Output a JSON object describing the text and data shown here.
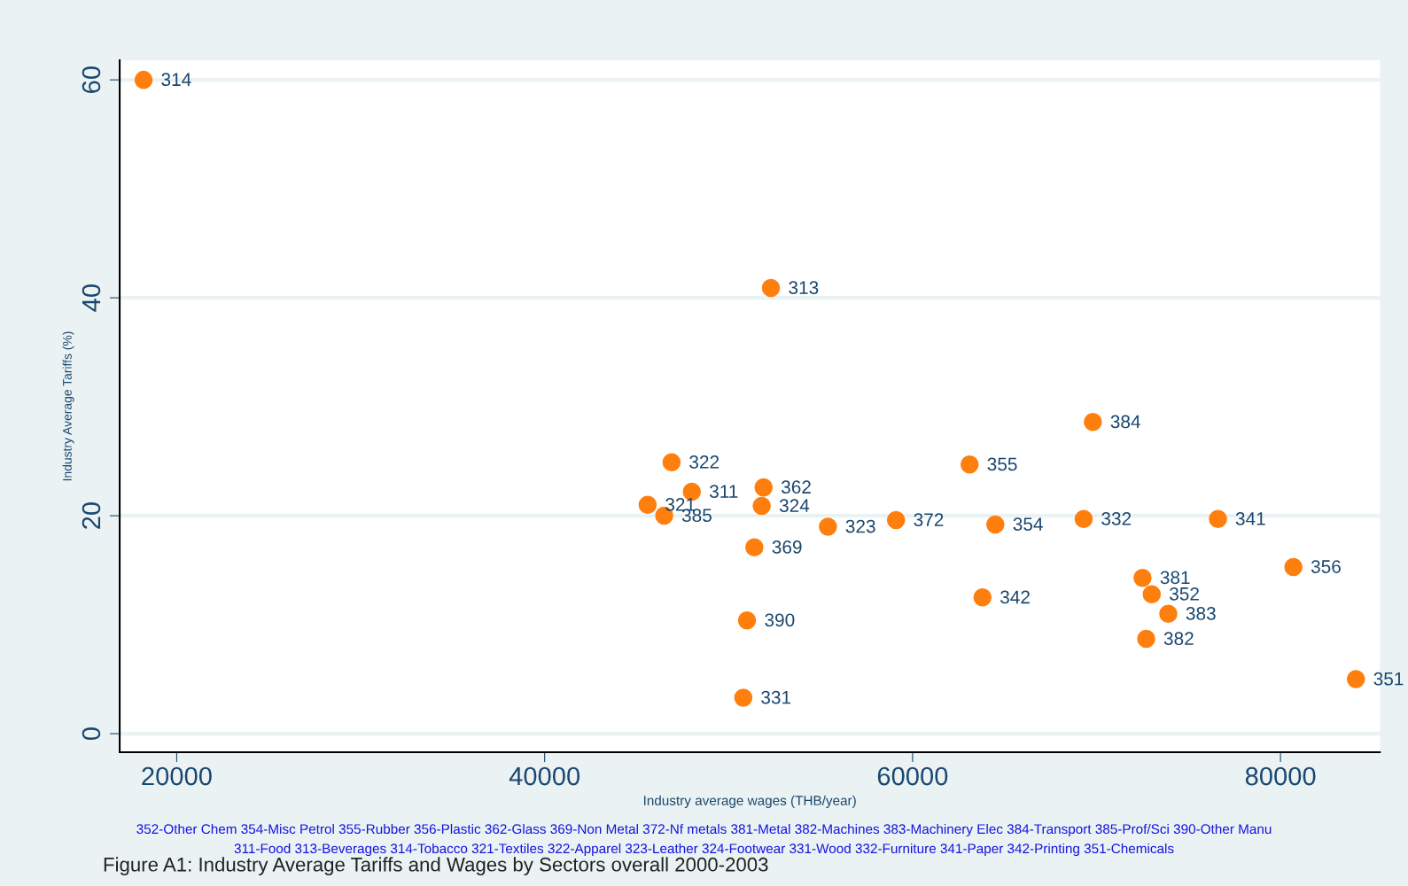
{
  "chart_data": {
    "type": "scatter",
    "title": "Figure A1: Industry Average Tariffs and Wages by Sectors overall 2000-2003",
    "xlabel": "Industry average wages (THB/year)",
    "ylabel": "Industry Average Tariffs (%)",
    "x": [
      18200,
      52300,
      69800,
      46900,
      63100,
      51900,
      48000,
      45600,
      51800,
      46500,
      55400,
      59100,
      64500,
      69300,
      76600,
      51400,
      80700,
      72500,
      73000,
      63800,
      73900,
      51000,
      72700,
      84100,
      50800
    ],
    "series": [
      {
        "color": "#ff7f0e",
        "values": [
          60,
          40.9,
          28.6,
          24.9,
          24.7,
          22.6,
          22.2,
          21.0,
          20.9,
          20.0,
          19.0,
          19.6,
          19.2,
          19.7,
          19.7,
          17.1,
          15.3,
          14.3,
          12.8,
          12.5,
          11.0,
          10.4,
          8.7,
          5.0,
          3.3
        ]
      }
    ],
    "marker": "circle",
    "xlim": [
      16900,
      85400
    ],
    "ylim": [
      -1.7,
      61.8
    ],
    "xticks": [
      20000,
      40000,
      60000,
      80000
    ],
    "yticks": [
      0,
      20,
      40,
      60
    ],
    "grid": "y",
    "legend": false,
    "annotations": [
      {
        "text": "314",
        "x": 18200,
        "y": 60
      },
      {
        "text": "313",
        "x": 52300,
        "y": 40.9
      },
      {
        "text": "384",
        "x": 69800,
        "y": 28.6
      },
      {
        "text": "322",
        "x": 46900,
        "y": 24.9
      },
      {
        "text": "355",
        "x": 63100,
        "y": 24.7
      },
      {
        "text": "362",
        "x": 51900,
        "y": 22.6
      },
      {
        "text": "311",
        "x": 48000,
        "y": 22.2
      },
      {
        "text": "321",
        "x": 45600,
        "y": 21.0
      },
      {
        "text": "324",
        "x": 51800,
        "y": 20.9
      },
      {
        "text": "385",
        "x": 46500,
        "y": 20.0
      },
      {
        "text": "323",
        "x": 55400,
        "y": 19.0
      },
      {
        "text": "372",
        "x": 59100,
        "y": 19.6
      },
      {
        "text": "354",
        "x": 64500,
        "y": 19.2
      },
      {
        "text": "332",
        "x": 69300,
        "y": 19.7
      },
      {
        "text": "341",
        "x": 76600,
        "y": 19.7
      },
      {
        "text": "369",
        "x": 51400,
        "y": 17.1
      },
      {
        "text": "356",
        "x": 80700,
        "y": 15.3
      },
      {
        "text": "381",
        "x": 72500,
        "y": 14.3
      },
      {
        "text": "352",
        "x": 73000,
        "y": 12.8
      },
      {
        "text": "342",
        "x": 63800,
        "y": 12.5
      },
      {
        "text": "383",
        "x": 73900,
        "y": 11.0
      },
      {
        "text": "390",
        "x": 51000,
        "y": 10.4
      },
      {
        "text": "382",
        "x": 72700,
        "y": 8.7
      },
      {
        "text": "351",
        "x": 84100,
        "y": 5.0
      },
      {
        "text": "331",
        "x": 50800,
        "y": 3.3
      },
      "352-Other Chem 354-Misc Petrol 355-Rubber 356-Plastic 362-Glass 369-Non Metal 372-Nf metals 381-Metal 382-Machines 383-Machinery Elec 384-Transport 385-Prof/Sci 390-Other Manu",
      "311-Food 313-Beverages 314-Tobacco 321-Textiles 322-Apparel 323-Leather 324-Footwear 331-Wood 332-Furniture 341-Paper 342-Printing 351-Chemicals"
    ]
  }
}
